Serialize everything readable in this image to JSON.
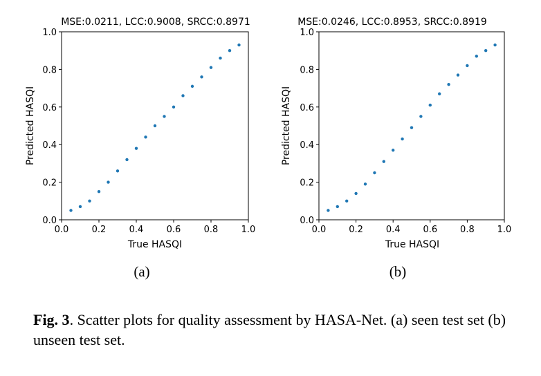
{
  "chart_data": [
    {
      "type": "scatter",
      "title": "MSE:0.0211, LCC:0.9008, SRCC:0.8971",
      "xlabel": "True HASQI",
      "ylabel": "Predicted HASQI",
      "xlim": [
        0.0,
        1.0
      ],
      "ylim": [
        0.0,
        1.0
      ],
      "xticks": [
        "0.0",
        "0.2",
        "0.4",
        "0.6",
        "0.8",
        "1.0"
      ],
      "yticks": [
        "0.0",
        "0.2",
        "0.4",
        "0.6",
        "0.8",
        "1.0"
      ],
      "color": "#1f77b4",
      "grid": false,
      "sublabel": "(a)",
      "series": [
        {
          "x": [
            0.05,
            0.1,
            0.15,
            0.2,
            0.25,
            0.3,
            0.35,
            0.4,
            0.45,
            0.5,
            0.55,
            0.6,
            0.65,
            0.7,
            0.75,
            0.8,
            0.85,
            0.9,
            0.95
          ],
          "y": [
            0.05,
            0.07,
            0.1,
            0.15,
            0.2,
            0.26,
            0.32,
            0.38,
            0.44,
            0.5,
            0.55,
            0.6,
            0.66,
            0.71,
            0.76,
            0.81,
            0.86,
            0.9,
            0.93
          ]
        }
      ]
    },
    {
      "type": "scatter",
      "title": "MSE:0.0246, LCC:0.8953, SRCC:0.8919",
      "xlabel": "True HASQI",
      "ylabel": "Predicted HASQI",
      "xlim": [
        0.0,
        1.0
      ],
      "ylim": [
        0.0,
        1.0
      ],
      "xticks": [
        "0.0",
        "0.2",
        "0.4",
        "0.6",
        "0.8",
        "1.0"
      ],
      "yticks": [
        "0.0",
        "0.2",
        "0.4",
        "0.6",
        "0.8",
        "1.0"
      ],
      "color": "#1f77b4",
      "grid": false,
      "sublabel": "(b)",
      "series": [
        {
          "x": [
            0.05,
            0.1,
            0.15,
            0.2,
            0.25,
            0.3,
            0.35,
            0.4,
            0.45,
            0.5,
            0.55,
            0.6,
            0.65,
            0.7,
            0.75,
            0.8,
            0.85,
            0.9,
            0.95
          ],
          "y": [
            0.05,
            0.07,
            0.1,
            0.14,
            0.19,
            0.25,
            0.31,
            0.37,
            0.43,
            0.49,
            0.55,
            0.61,
            0.67,
            0.72,
            0.77,
            0.82,
            0.87,
            0.9,
            0.93
          ]
        }
      ]
    }
  ],
  "caption": {
    "label": "Fig. 3",
    "text": ". Scatter plots for quality assessment by HASA-Net. (a) seen test set (b) unseen test set."
  }
}
